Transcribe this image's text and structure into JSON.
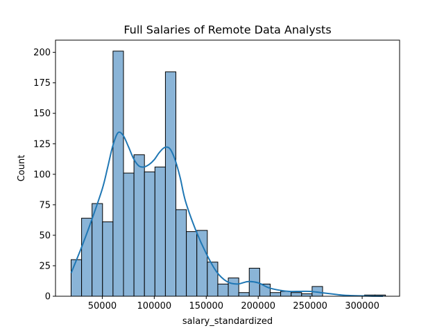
{
  "chart_data": {
    "type": "bar",
    "title": "Full Salaries of Remote Data Analysts",
    "xlabel": "salary_standardized",
    "ylabel": "Count",
    "xlim": [
      5000,
      336000
    ],
    "ylim": [
      0,
      210
    ],
    "xticks": [
      50000,
      100000,
      150000,
      200000,
      250000,
      300000
    ],
    "xtick_labels": [
      "50000",
      "100000",
      "150000",
      "200000",
      "250000",
      "300000"
    ],
    "yticks": [
      0,
      25,
      50,
      75,
      100,
      125,
      150,
      175,
      200
    ],
    "ytick_labels": [
      "0",
      "25",
      "50",
      "75",
      "100",
      "125",
      "150",
      "175",
      "200"
    ],
    "grid": false,
    "legend": "none",
    "bin_edges": [
      20000,
      30080,
      40160,
      50240,
      60320,
      70400,
      80480,
      90560,
      100640,
      110720,
      120800,
      130880,
      140960,
      151040,
      161120,
      171200,
      181280,
      191360,
      201440,
      211520,
      221600,
      231680,
      241760,
      251840,
      261920,
      272000,
      282080,
      292160,
      302240,
      312320,
      322400
    ],
    "counts": [
      30,
      64,
      76,
      61,
      201,
      101,
      116,
      102,
      106,
      184,
      71,
      53,
      54,
      28,
      10,
      15,
      3,
      23,
      10,
      3,
      4,
      3,
      2,
      8,
      0,
      0,
      0,
      0,
      1,
      1
    ],
    "kde": {
      "x": [
        20000,
        30000,
        40000,
        50000,
        55000,
        60000,
        65000,
        70000,
        75000,
        80000,
        85000,
        90000,
        95000,
        100000,
        105000,
        110000,
        115000,
        120000,
        125000,
        130000,
        140000,
        150000,
        160000,
        170000,
        180000,
        190000,
        200000,
        210000,
        220000,
        230000,
        240000,
        250000,
        260000,
        270000,
        280000,
        290000,
        300000,
        310000,
        320000
      ],
      "y": [
        19,
        40,
        63,
        88,
        105,
        123,
        134,
        132,
        123,
        113,
        107,
        106,
        108,
        112,
        118,
        122,
        121,
        112,
        97,
        78,
        54,
        35,
        20,
        12,
        10,
        12,
        11,
        7,
        5,
        4,
        4,
        4,
        3,
        2,
        1,
        0.5,
        0.3,
        0.1,
        0
      ]
    },
    "colors": {
      "bar_fill": "#8ab4d7",
      "bar_edge": "#000000",
      "kde_line": "#1f77b4"
    }
  }
}
